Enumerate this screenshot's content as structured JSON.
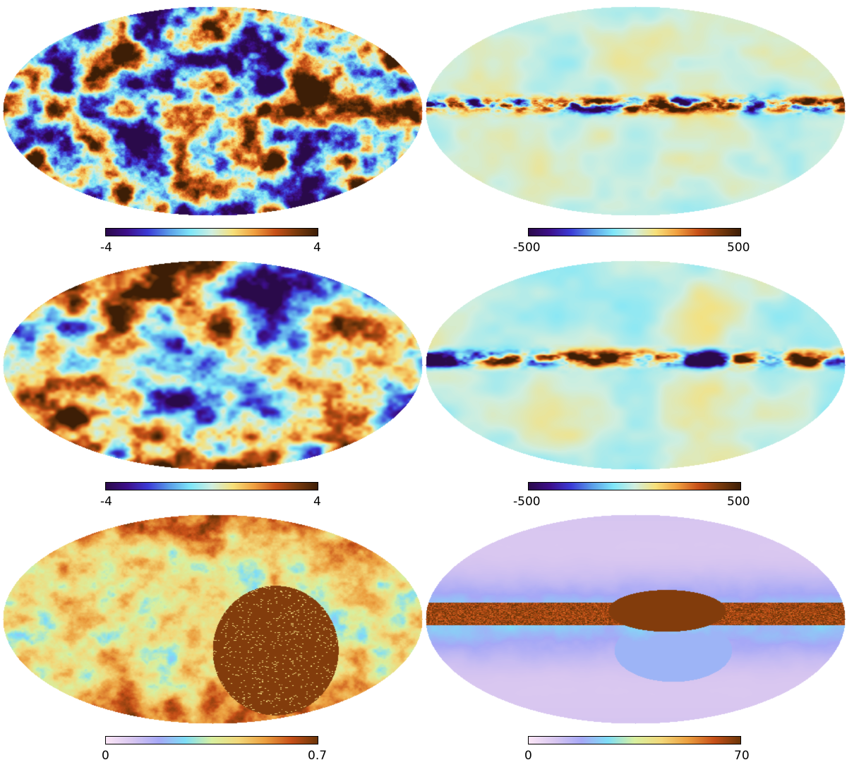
{
  "palettes": {
    "diverging": [
      "#2a0a4a",
      "#3d0f8a",
      "#3b3bd6",
      "#5a9de8",
      "#7fe6f8",
      "#cfeee0",
      "#f6e07a",
      "#f0a040",
      "#c75018",
      "#7a3a0c",
      "#3d1e06"
    ],
    "sequential": [
      "#fbe6f6",
      "#d8c6f0",
      "#a6a8f6",
      "#7fdef6",
      "#d8f0a0",
      "#f2d87a",
      "#eca040",
      "#c75018",
      "#6b3508"
    ]
  },
  "panels": [
    {
      "id": "top-left",
      "palette": "diverging",
      "min_label": "-4",
      "max_label": "4",
      "pattern": "cmb-fine"
    },
    {
      "id": "top-right",
      "palette": "diverging",
      "min_label": "-500",
      "max_label": "500",
      "pattern": "galactic-fine"
    },
    {
      "id": "middle-left",
      "palette": "diverging",
      "min_label": "-4",
      "max_label": "4",
      "pattern": "cmb-smooth"
    },
    {
      "id": "middle-right",
      "palette": "diverging",
      "min_label": "-500",
      "max_label": "500",
      "pattern": "galactic-smooth"
    },
    {
      "id": "bottom-left",
      "palette": "sequential",
      "min_label": "0",
      "max_label": "0.7",
      "pattern": "mask-hole"
    },
    {
      "id": "bottom-right",
      "palette": "sequential",
      "min_label": "0",
      "max_label": "70",
      "pattern": "galactic-band"
    }
  ]
}
